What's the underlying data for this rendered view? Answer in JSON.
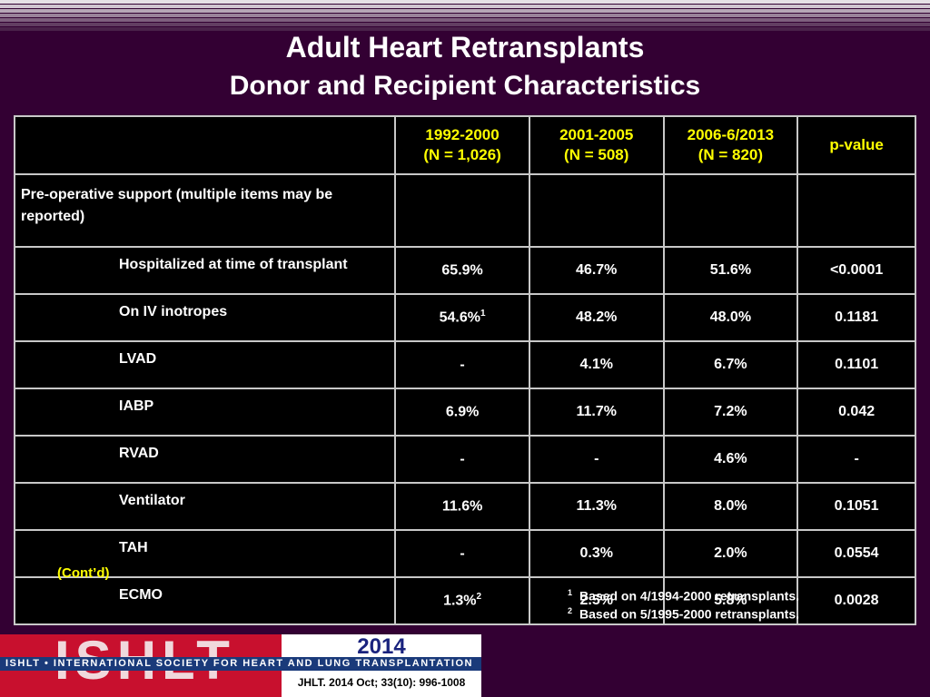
{
  "title": "Adult Heart Retransplants",
  "subtitle": "Donor and Recipient Characteristics",
  "table": {
    "headers": [
      {
        "line1": "1992-2000",
        "line2": "(N = 1,026)"
      },
      {
        "line1": "2001-2005",
        "line2": "(N = 508)"
      },
      {
        "line1": "2006-6/2013",
        "line2": "(N = 820)"
      },
      {
        "line1": "p-value",
        "line2": ""
      }
    ],
    "section_label": "Pre-operative support (multiple items may be reported)",
    "rows": [
      {
        "label": "Hospitalized at time of transplant",
        "c1": "65.9%",
        "c1_sup": "",
        "c2": "46.7%",
        "c3": "51.6%",
        "p": "<0.0001"
      },
      {
        "label": "On IV inotropes",
        "c1": "54.6%",
        "c1_sup": "1",
        "c2": "48.2%",
        "c3": "48.0%",
        "p": "0.1181"
      },
      {
        "label": "LVAD",
        "c1": "-",
        "c1_sup": "",
        "c2": "4.1%",
        "c3": "6.7%",
        "p": "0.1101"
      },
      {
        "label": "IABP",
        "c1": "6.9%",
        "c1_sup": "",
        "c2": "11.7%",
        "c3": "7.2%",
        "p": "0.042"
      },
      {
        "label": "RVAD",
        "c1": "-",
        "c1_sup": "",
        "c2": "-",
        "c3": "4.6%",
        "p": "-"
      },
      {
        "label": "Ventilator",
        "c1": "11.6%",
        "c1_sup": "",
        "c2": "11.3%",
        "c3": "8.0%",
        "p": "0.1051"
      },
      {
        "label": "TAH",
        "c1": "-",
        "c1_sup": "",
        "c2": "0.3%",
        "c3": "2.0%",
        "p": "0.0554"
      },
      {
        "label": "ECMO",
        "c1": "1.3%",
        "c1_sup": "2",
        "c2": "2.5%",
        "c3": "5.8%",
        "p": "0.0028"
      }
    ]
  },
  "contd": "(Cont’d)",
  "footnotes": [
    {
      "num": "1",
      "text": "Based on 4/1994-2000 retransplants."
    },
    {
      "num": "2",
      "text": "Based on 5/1995-2000 retransplants."
    }
  ],
  "logo": {
    "wordmark": "ISHLT",
    "year": "2014",
    "band": "ISHLT • INTERNATIONAL SOCIETY FOR HEART AND LUNG TRANSPLANTATION",
    "journal": "JHLT. 2014 Oct; 33(10): 996-1008"
  },
  "colors": {
    "background": "#330033",
    "header_text": "#ffff00",
    "logo_red": "#c8102e",
    "logo_blue": "#1a237e"
  }
}
